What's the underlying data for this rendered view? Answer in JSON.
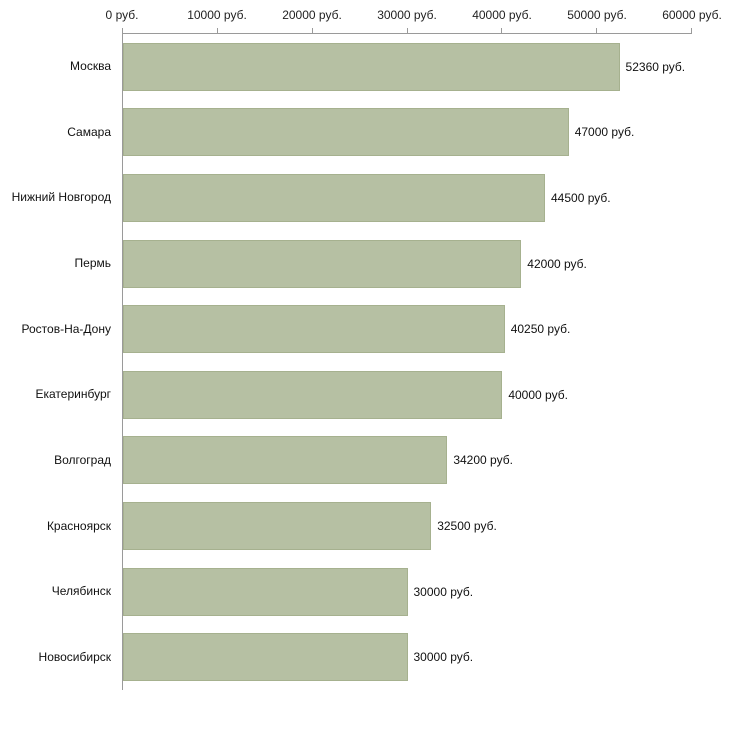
{
  "chart_data": {
    "type": "bar",
    "orientation": "horizontal",
    "title": "",
    "xlabel": "",
    "ylabel": "",
    "categories": [
      "Москва",
      "Самара",
      "Нижний Новгород",
      "Пермь",
      "Ростов-На-Дону",
      "Екатеринбург",
      "Волгоград",
      "Красноярск",
      "Челябинск",
      "Новосибирск"
    ],
    "values": [
      52360,
      47000,
      44500,
      42000,
      40250,
      40000,
      34200,
      32500,
      30000,
      30000
    ],
    "value_labels": [
      "52360 руб.",
      "47000 руб.",
      "44500 руб.",
      "42000 руб.",
      "40250 руб.",
      "40000 руб.",
      "34200 руб.",
      "32500 руб.",
      "30000 руб.",
      "30000 руб."
    ],
    "x_ticks": [
      0,
      10000,
      20000,
      30000,
      40000,
      50000,
      60000
    ],
    "x_tick_labels": [
      "0 руб.",
      "10000 руб.",
      "20000 руб.",
      "30000 руб.",
      "40000 руб.",
      "50000 руб.",
      "60000 руб."
    ],
    "xlim": [
      0,
      60000
    ],
    "grid": false,
    "legend_position": "none",
    "bar_color": "#b6c0a3",
    "bar_border_color": "#a6b18f",
    "axis_color": "#9a9a9a",
    "text_color": "#111111"
  }
}
